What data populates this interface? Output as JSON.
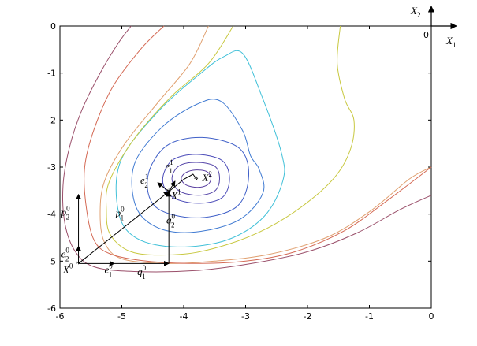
{
  "chart_data": {
    "type": "contour",
    "title": "",
    "xlabel": "",
    "ylabel": "",
    "xlim": [
      -6,
      0
    ],
    "ylim": [
      -6,
      0
    ],
    "x_ticks": [
      -6,
      -5,
      -4,
      -3,
      -2,
      -1,
      0
    ],
    "y_ticks": [
      0,
      -1,
      -2,
      -3,
      -4,
      -5,
      -6
    ],
    "tick_labels_x": [
      "-6",
      "-5",
      "-4",
      "-3",
      "-2",
      "-1",
      "0"
    ],
    "tick_labels_y": [
      "0",
      "-1",
      "-2",
      "-3",
      "-4",
      "-5",
      "-6"
    ],
    "grid": false,
    "minimum": {
      "x": -3.8,
      "y": -3.25
    },
    "contours": [
      {
        "color": "#5a3fa0",
        "points": [
          [
            -3.56,
            -3.25
          ],
          [
            -3.62,
            -3.1
          ],
          [
            -3.8,
            -3.06
          ],
          [
            -3.97,
            -3.12
          ],
          [
            -4.04,
            -3.25
          ],
          [
            -3.96,
            -3.38
          ],
          [
            -3.78,
            -3.43
          ],
          [
            -3.62,
            -3.38
          ]
        ]
      },
      {
        "color": "#5545a8",
        "points": [
          [
            -3.42,
            -3.25
          ],
          [
            -3.5,
            -2.98
          ],
          [
            -3.8,
            -2.9
          ],
          [
            -4.08,
            -2.98
          ],
          [
            -4.19,
            -3.25
          ],
          [
            -4.07,
            -3.51
          ],
          [
            -3.77,
            -3.6
          ],
          [
            -3.5,
            -3.51
          ]
        ]
      },
      {
        "color": "#4a4ab8",
        "points": [
          [
            -3.26,
            -3.25
          ],
          [
            -3.38,
            -2.86
          ],
          [
            -3.8,
            -2.73
          ],
          [
            -4.19,
            -2.86
          ],
          [
            -4.34,
            -3.28
          ],
          [
            -4.18,
            -3.64
          ],
          [
            -3.77,
            -3.77
          ],
          [
            -3.38,
            -3.65
          ]
        ]
      },
      {
        "color": "#4060c8",
        "points": [
          [
            -2.95,
            -3.2
          ],
          [
            -3.1,
            -2.6
          ],
          [
            -3.7,
            -2.37
          ],
          [
            -4.28,
            -2.55
          ],
          [
            -4.58,
            -3.2
          ],
          [
            -4.45,
            -3.85
          ],
          [
            -3.8,
            -4.08
          ],
          [
            -3.15,
            -3.85
          ]
        ]
      },
      {
        "color": "#3f7ad2",
        "points": [
          [
            -2.92,
            -2.76
          ],
          [
            -3.05,
            -2.22
          ],
          [
            -3.4,
            -1.6
          ],
          [
            -3.78,
            -1.66
          ],
          [
            -4.35,
            -2.15
          ],
          [
            -4.8,
            -2.95
          ],
          [
            -4.77,
            -3.85
          ],
          [
            -4.4,
            -4.3
          ],
          [
            -3.8,
            -4.38
          ],
          [
            -3.1,
            -4.12
          ],
          [
            -2.72,
            -3.55
          ],
          [
            -2.78,
            -3.05
          ]
        ]
      },
      {
        "color": "#40c0d8",
        "points": [
          [
            -2.42,
            -2.7
          ],
          [
            -2.75,
            -1.45
          ],
          [
            -3.05,
            -0.58
          ],
          [
            -3.35,
            -0.65
          ],
          [
            -3.7,
            -0.98
          ],
          [
            -4.4,
            -1.8
          ],
          [
            -5.02,
            -2.88
          ],
          [
            -5.05,
            -3.98
          ],
          [
            -4.75,
            -4.52
          ],
          [
            -4.1,
            -4.7
          ],
          [
            -3.3,
            -4.55
          ],
          [
            -2.7,
            -4.05
          ],
          [
            -2.4,
            -3.3
          ]
        ]
      }
    ],
    "open_contours": [
      {
        "color": "#c8c840",
        "points": [
          [
            -1.47,
            0
          ],
          [
            -1.52,
            -0.8
          ],
          [
            -1.4,
            -1.55
          ],
          [
            -1.25,
            -2.0
          ],
          [
            -1.3,
            -2.6
          ],
          [
            -1.55,
            -3.2
          ],
          [
            -2.05,
            -3.8
          ],
          [
            -2.65,
            -4.3
          ],
          [
            -3.3,
            -4.65
          ],
          [
            -4.0,
            -4.85
          ],
          [
            -4.8,
            -4.82
          ],
          [
            -5.18,
            -4.45
          ],
          [
            -5.25,
            -3.9
          ],
          [
            -5.2,
            -3.3
          ],
          [
            -4.8,
            -2.4
          ],
          [
            -4.2,
            -1.5
          ],
          [
            -3.6,
            -0.8
          ],
          [
            -3.2,
            0
          ]
        ]
      },
      {
        "color": "#e0a070",
        "points": [
          [
            0,
            -3.0
          ],
          [
            -0.35,
            -3.25
          ],
          [
            -1.0,
            -3.95
          ],
          [
            -1.7,
            -4.5
          ],
          [
            -2.6,
            -4.85
          ],
          [
            -3.5,
            -5.0
          ],
          [
            -4.3,
            -5.05
          ],
          [
            -5.0,
            -4.95
          ],
          [
            -5.28,
            -4.6
          ],
          [
            -5.35,
            -4.0
          ],
          [
            -5.28,
            -3.3
          ],
          [
            -4.95,
            -2.5
          ],
          [
            -4.4,
            -1.6
          ],
          [
            -3.9,
            -0.8
          ],
          [
            -3.6,
            0
          ]
        ]
      },
      {
        "color": "#d46a55",
        "points": [
          [
            -4.32,
            0
          ],
          [
            -4.7,
            -0.5
          ],
          [
            -5.15,
            -1.3
          ],
          [
            -5.45,
            -2.2
          ],
          [
            -5.6,
            -3.0
          ],
          [
            -5.58,
            -3.8
          ],
          [
            -5.45,
            -4.55
          ],
          [
            -5.18,
            -4.85
          ],
          [
            -4.6,
            -5.0
          ],
          [
            -3.8,
            -5.05
          ],
          [
            -3.0,
            -5.0
          ],
          [
            -2.2,
            -4.8
          ],
          [
            -1.4,
            -4.35
          ],
          [
            -0.7,
            -3.7
          ],
          [
            0,
            -3.0
          ]
        ]
      },
      {
        "color": "#9a4f6a",
        "points": [
          [
            -4.85,
            0
          ],
          [
            -5.05,
            -0.35
          ],
          [
            -5.35,
            -1.0
          ],
          [
            -5.65,
            -1.8
          ],
          [
            -5.85,
            -2.6
          ],
          [
            -5.95,
            -3.4
          ],
          [
            -5.92,
            -4.2
          ],
          [
            -5.75,
            -4.8
          ],
          [
            -5.45,
            -5.12
          ],
          [
            -4.8,
            -5.22
          ],
          [
            -3.8,
            -5.2
          ],
          [
            -2.9,
            -5.05
          ],
          [
            -2.0,
            -4.8
          ],
          [
            -1.2,
            -4.4
          ],
          [
            -0.5,
            -3.9
          ],
          [
            0,
            -3.6
          ]
        ]
      }
    ],
    "path_points": [
      [
        -5.7,
        -5.05
      ],
      [
        -4.24,
        -3.52
      ],
      [
        -3.8,
        -3.25
      ]
    ],
    "unit_vectors": [
      {
        "name": "e1_0",
        "from": [
          -5.7,
          -5.05
        ],
        "to": [
          -5.12,
          -5.05
        ]
      },
      {
        "name": "q1_0",
        "from": [
          -5.12,
          -5.05
        ],
        "to": [
          -4.24,
          -5.05
        ]
      },
      {
        "name": "e2_0",
        "from": [
          -5.7,
          -5.05
        ],
        "to": [
          -5.7,
          -4.68
        ]
      },
      {
        "name": "p2_0",
        "from": [
          -5.7,
          -4.68
        ],
        "to": [
          -5.7,
          -3.58
        ]
      },
      {
        "name": "q2_0",
        "from": [
          -4.24,
          -5.05
        ],
        "to": [
          -4.24,
          -3.52
        ]
      },
      {
        "name": "p1_0",
        "from": [
          -5.7,
          -5.05
        ],
        "to": [
          -4.24,
          -3.52
        ]
      },
      {
        "name": "e2_1",
        "from": [
          -4.24,
          -3.52
        ],
        "to": [
          -4.42,
          -3.33
        ]
      },
      {
        "name": "e1_1",
        "from": [
          -4.24,
          -3.52
        ],
        "to": [
          -4.14,
          -3.3
        ]
      }
    ],
    "step_x1": [
      [
        -4.24,
        -3.52
      ],
      [
        -4.0,
        -3.26
      ],
      [
        -3.85,
        -3.15
      ],
      [
        -3.78,
        -3.28
      ]
    ],
    "markers": [
      [
        -5.7,
        -5.05
      ],
      [
        -4.24,
        -3.52
      ],
      [
        -3.8,
        -3.25
      ]
    ],
    "annotations": [
      {
        "name": "x0",
        "main": "X",
        "sup": "0",
        "at": [
          -5.95,
          -5.25
        ]
      },
      {
        "name": "x1",
        "main": "X",
        "sup": "1",
        "at": [
          -4.2,
          -3.68
        ]
      },
      {
        "name": "x2",
        "main": "X",
        "sup": "2",
        "at": [
          -3.7,
          -3.3
        ]
      },
      {
        "name": "e1-0",
        "main": "e",
        "sub": "1",
        "sup": "0",
        "at": [
          -5.28,
          -5.25
        ]
      },
      {
        "name": "q1-0",
        "main": "q",
        "sub": "1",
        "sup": "0",
        "at": [
          -4.75,
          -5.3
        ]
      },
      {
        "name": "e2-0",
        "main": "e",
        "sub": "2",
        "sup": "0",
        "at": [
          -5.98,
          -4.92
        ]
      },
      {
        "name": "p2-0",
        "main": "p",
        "sub": "2",
        "sup": "0",
        "at": [
          -5.98,
          -4.03
        ]
      },
      {
        "name": "p1-0",
        "main": "p",
        "sub": "1",
        "sup": "0",
        "at": [
          -5.1,
          -4.05
        ]
      },
      {
        "name": "q2-0",
        "main": "q",
        "sub": "2",
        "sup": "0",
        "at": [
          -4.28,
          -4.2
        ]
      },
      {
        "name": "e2-1",
        "main": "e",
        "sub": "2",
        "sup": "1",
        "at": [
          -4.7,
          -3.35
        ]
      },
      {
        "name": "e1-1",
        "main": "e",
        "sub": "1",
        "sup": "1",
        "at": [
          -4.3,
          -3.05
        ]
      }
    ],
    "axes_inset": {
      "x_label": "X",
      "x_sub": "1",
      "y_label": "X",
      "y_sub": "2",
      "origin_label": "0"
    }
  }
}
